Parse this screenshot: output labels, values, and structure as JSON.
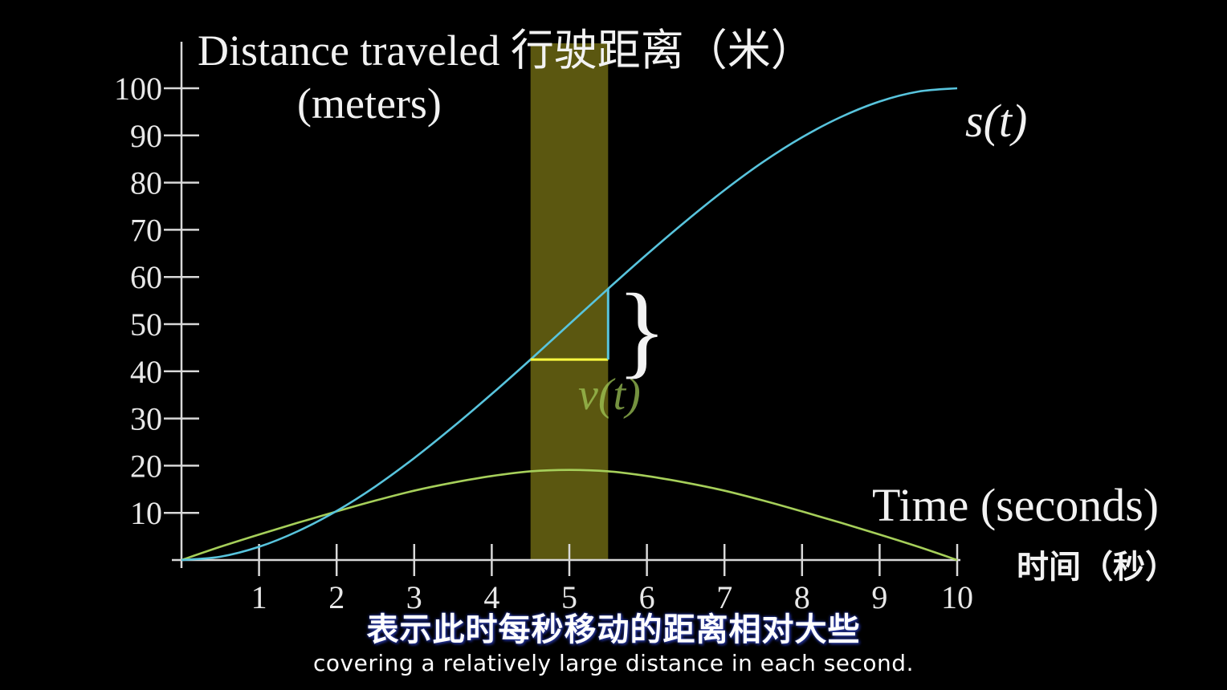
{
  "chart_data": {
    "type": "line",
    "title": "",
    "ylabel_line1": "Distance traveled 行驶距离（米）",
    "ylabel_line2": "(meters)",
    "xlabel_line1": "Time (seconds)",
    "xlabel_line2": "时间（秒）",
    "xlim": [
      0,
      10
    ],
    "ylim": [
      0,
      100
    ],
    "x_ticks": [
      "1",
      "2",
      "3",
      "4",
      "5",
      "6",
      "7",
      "8",
      "9",
      "10"
    ],
    "y_ticks": [
      "10",
      "20",
      "30",
      "40",
      "50",
      "60",
      "70",
      "80",
      "90",
      "100"
    ],
    "series": [
      {
        "name": "s(t)",
        "color": "#58c4dd",
        "x": [
          0,
          0.5,
          1,
          1.5,
          2,
          2.5,
          3,
          3.5,
          4,
          4.5,
          5,
          5.5,
          6,
          6.5,
          7,
          7.5,
          8,
          8.5,
          9,
          9.5,
          10
        ],
        "y": [
          0,
          0.7,
          2.8,
          6.1,
          10.4,
          15.6,
          21.6,
          28.2,
          35.2,
          42.5,
          50,
          57.5,
          64.8,
          71.8,
          78.4,
          84.4,
          89.6,
          93.9,
          97.2,
          99.3,
          100
        ]
      },
      {
        "name": "v(t)",
        "color": "#a6cf5a",
        "x": [
          0,
          0.5,
          1,
          1.5,
          2,
          2.5,
          3,
          3.5,
          4,
          4.5,
          5,
          5.5,
          6,
          6.5,
          7,
          7.5,
          8,
          8.5,
          9,
          9.5,
          10
        ],
        "y": [
          0,
          2.8,
          5.4,
          7.9,
          10.3,
          12.6,
          14.7,
          16.4,
          17.8,
          18.8,
          19.1,
          18.8,
          17.8,
          16.4,
          14.7,
          12.6,
          10.3,
          7.9,
          5.4,
          2.8,
          0
        ]
      }
    ],
    "highlight_band": {
      "x_start": 4.5,
      "x_end": 5.5,
      "color": "#7a7416"
    },
    "slope_triangle": {
      "x_start": 4.5,
      "x_end": 5.5,
      "y_start": 42.5,
      "y_end": 57.5,
      "run_color": "#ffff40",
      "rise_color": "#58c4dd"
    },
    "annotations": {
      "s_label": "s(t)",
      "v_label": "v(t)",
      "brace": "}"
    }
  },
  "subtitles": {
    "chinese": "表示此时每秒移动的距离相对大些",
    "english": "covering a relatively large distance in each second."
  }
}
